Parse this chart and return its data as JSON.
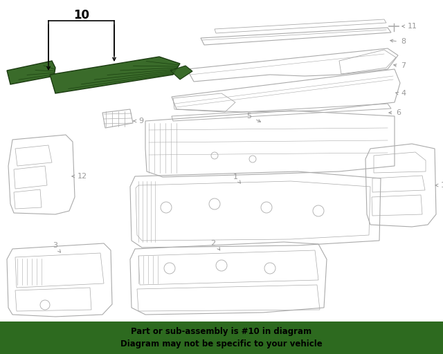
{
  "bg_color": "#ffffff",
  "banner_color": "#2d6a1f",
  "banner_text_line1": "Part or sub-assembly is #10 in diagram",
  "banner_text_line2": "Diagram may not be specific to your vehicle",
  "banner_text_color": "#000000",
  "part_highlight_fill": "#3a6b2a",
  "part_highlight_edge": "#1a3a10",
  "line_color": "#aaaaaa",
  "label_color": "#999999",
  "fig_w": 6.4,
  "fig_h": 5.12,
  "dpi": 100
}
